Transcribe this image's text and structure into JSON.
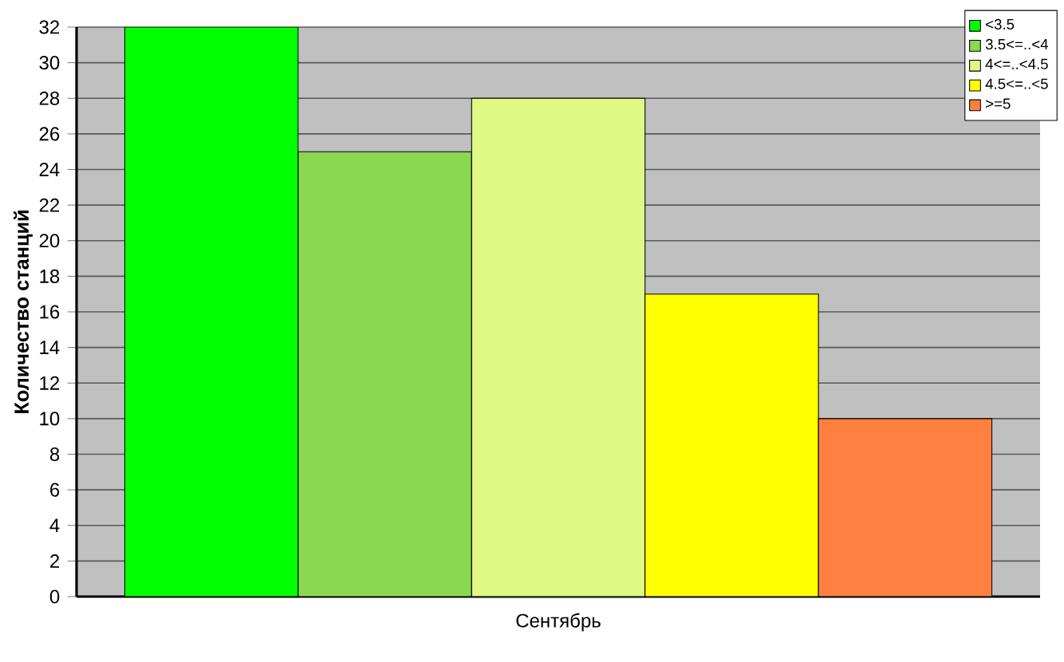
{
  "chart_data": {
    "type": "bar",
    "ylabel": "Количество станций",
    "categories": [
      "Сентябрь"
    ],
    "series": [
      {
        "name": "<3.5",
        "color": "#00ff00",
        "values": [
          32
        ]
      },
      {
        "name": "3.5<=..<4",
        "color": "#8ad84f",
        "values": [
          25
        ]
      },
      {
        "name": "4<=..<4.5",
        "color": "#e0f884",
        "values": [
          28
        ]
      },
      {
        "name": "4.5<=..<5",
        "color": "#ffff00",
        "values": [
          17
        ]
      },
      {
        "name": ">=5",
        "color": "#ff8040",
        "values": [
          10
        ]
      }
    ],
    "ylim": [
      0,
      32
    ],
    "yticks": [
      0,
      2,
      4,
      6,
      8,
      10,
      12,
      14,
      16,
      18,
      20,
      22,
      24,
      26,
      28,
      30,
      32
    ],
    "grid": "y",
    "legend": "top right"
  }
}
